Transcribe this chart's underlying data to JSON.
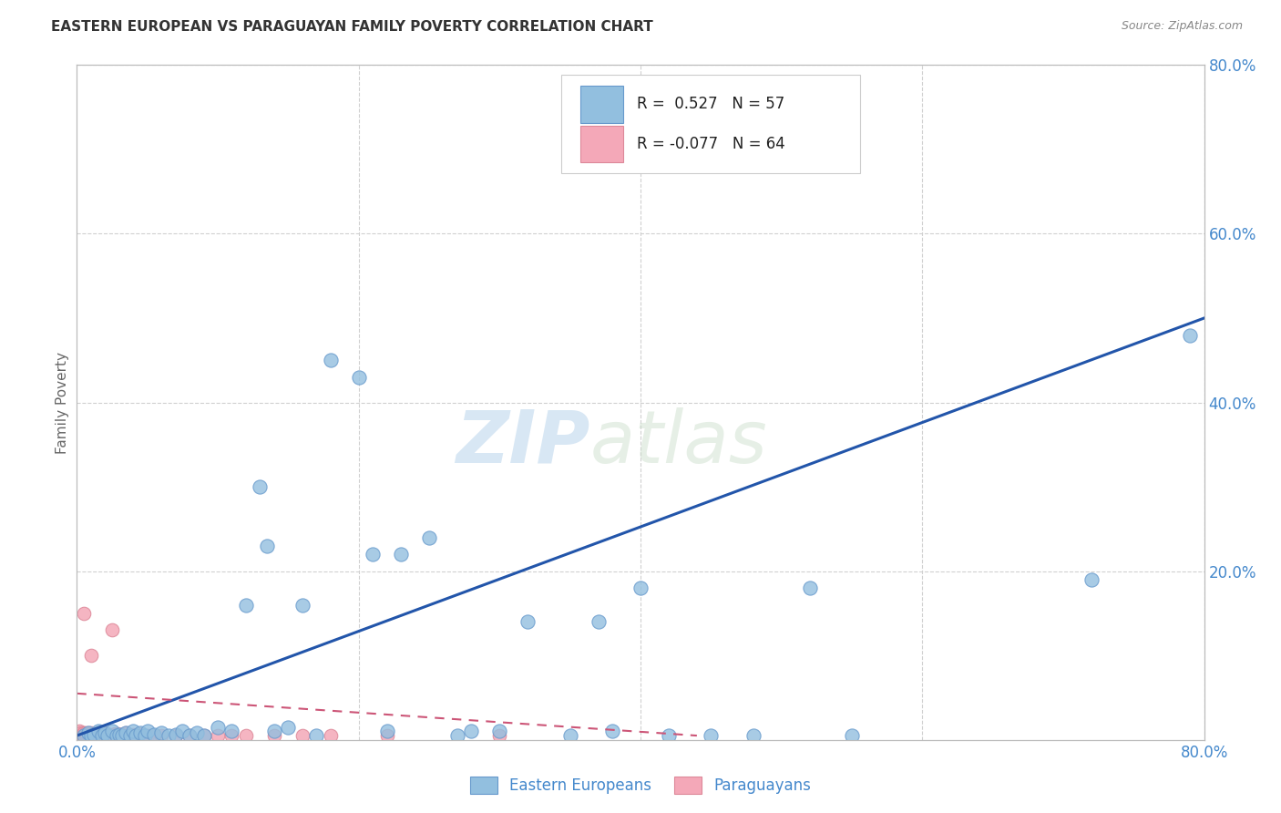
{
  "title": "EASTERN EUROPEAN VS PARAGUAYAN FAMILY POVERTY CORRELATION CHART",
  "source": "Source: ZipAtlas.com",
  "ylabel": "Family Poverty",
  "xlim": [
    0,
    0.8
  ],
  "ylim": [
    0,
    0.8
  ],
  "xticks": [
    0.0,
    0.2,
    0.4,
    0.6,
    0.8
  ],
  "xticklabels": [
    "0.0%",
    "",
    "",
    "",
    "80.0%"
  ],
  "yticks_right": [
    0.2,
    0.4,
    0.6,
    0.8
  ],
  "yticklabels_right": [
    "20.0%",
    "40.0%",
    "60.0%",
    "80.0%"
  ],
  "blue_color": "#92bfdf",
  "blue_edge_color": "#6699cc",
  "pink_color": "#f4a8b8",
  "pink_edge_color": "#dd8899",
  "blue_line_color": "#2255aa",
  "pink_line_color": "#cc5577",
  "legend_blue_R": "0.527",
  "legend_blue_N": "57",
  "legend_pink_R": "-0.077",
  "legend_pink_N": "64",
  "legend_label_blue": "Eastern Europeans",
  "legend_label_pink": "Paraguayans",
  "watermark_zip": "ZIP",
  "watermark_atlas": "atlas",
  "blue_scatter_x": [
    0.005,
    0.008,
    0.01,
    0.012,
    0.015,
    0.018,
    0.02,
    0.022,
    0.025,
    0.028,
    0.03,
    0.032,
    0.035,
    0.038,
    0.04,
    0.042,
    0.045,
    0.048,
    0.05,
    0.055,
    0.06,
    0.065,
    0.07,
    0.075,
    0.08,
    0.085,
    0.09,
    0.1,
    0.11,
    0.12,
    0.13,
    0.135,
    0.14,
    0.15,
    0.16,
    0.17,
    0.18,
    0.2,
    0.21,
    0.22,
    0.23,
    0.25,
    0.27,
    0.28,
    0.3,
    0.32,
    0.35,
    0.37,
    0.38,
    0.4,
    0.42,
    0.45,
    0.48,
    0.52,
    0.55,
    0.72,
    0.79
  ],
  "blue_scatter_y": [
    0.005,
    0.008,
    0.005,
    0.006,
    0.01,
    0.005,
    0.008,
    0.005,
    0.01,
    0.005,
    0.006,
    0.005,
    0.008,
    0.005,
    0.01,
    0.005,
    0.008,
    0.005,
    0.01,
    0.006,
    0.008,
    0.005,
    0.006,
    0.01,
    0.005,
    0.008,
    0.005,
    0.015,
    0.01,
    0.16,
    0.3,
    0.23,
    0.01,
    0.015,
    0.16,
    0.005,
    0.45,
    0.43,
    0.22,
    0.01,
    0.22,
    0.24,
    0.005,
    0.01,
    0.01,
    0.14,
    0.005,
    0.14,
    0.01,
    0.18,
    0.005,
    0.005,
    0.005,
    0.18,
    0.005,
    0.19,
    0.48
  ],
  "pink_scatter_x": [
    0.001,
    0.001,
    0.002,
    0.002,
    0.003,
    0.003,
    0.004,
    0.004,
    0.005,
    0.005,
    0.005,
    0.006,
    0.006,
    0.007,
    0.007,
    0.008,
    0.008,
    0.009,
    0.009,
    0.01,
    0.01,
    0.01,
    0.012,
    0.012,
    0.013,
    0.014,
    0.015,
    0.015,
    0.016,
    0.017,
    0.018,
    0.019,
    0.02,
    0.02,
    0.022,
    0.023,
    0.025,
    0.026,
    0.027,
    0.028,
    0.029,
    0.03,
    0.032,
    0.034,
    0.035,
    0.038,
    0.04,
    0.042,
    0.045,
    0.048,
    0.05,
    0.055,
    0.06,
    0.07,
    0.08,
    0.09,
    0.1,
    0.11,
    0.12,
    0.14,
    0.16,
    0.18,
    0.22,
    0.3
  ],
  "pink_scatter_y": [
    0.005,
    0.008,
    0.005,
    0.01,
    0.005,
    0.008,
    0.005,
    0.007,
    0.005,
    0.008,
    0.15,
    0.005,
    0.008,
    0.005,
    0.007,
    0.005,
    0.008,
    0.005,
    0.007,
    0.005,
    0.008,
    0.1,
    0.005,
    0.007,
    0.005,
    0.006,
    0.005,
    0.008,
    0.005,
    0.007,
    0.005,
    0.007,
    0.005,
    0.008,
    0.005,
    0.006,
    0.13,
    0.005,
    0.007,
    0.005,
    0.007,
    0.005,
    0.006,
    0.005,
    0.008,
    0.005,
    0.006,
    0.005,
    0.007,
    0.005,
    0.005,
    0.005,
    0.005,
    0.005,
    0.005,
    0.005,
    0.005,
    0.005,
    0.005,
    0.005,
    0.005,
    0.005,
    0.005,
    0.005
  ],
  "blue_line_x0": 0.0,
  "blue_line_x1": 0.8,
  "blue_line_y0": 0.005,
  "blue_line_y1": 0.5,
  "pink_line_x0": 0.0,
  "pink_line_x1": 0.44,
  "pink_line_y0": 0.055,
  "pink_line_y1": 0.005,
  "background_color": "#ffffff",
  "grid_color": "#d0d0d0",
  "tick_color": "#4488cc",
  "title_color": "#333333",
  "spine_color": "#bbbbbb"
}
